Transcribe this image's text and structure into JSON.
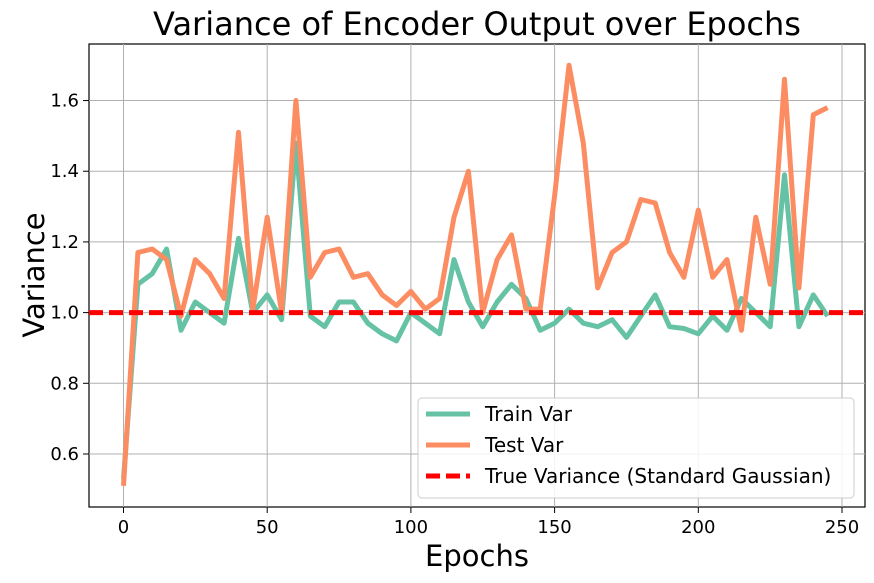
{
  "chart_data": {
    "type": "line",
    "title": "Variance of Encoder Output over Epochs",
    "xlabel": "Epochs",
    "ylabel": "Variance",
    "xlim": [
      -12,
      258
    ],
    "ylim": [
      0.45,
      1.76
    ],
    "xticks": [
      0,
      50,
      100,
      150,
      200,
      250
    ],
    "yticks": [
      0.6,
      0.8,
      1.0,
      1.2,
      1.4,
      1.6
    ],
    "grid": true,
    "legend_position": "lower-right",
    "x": [
      0,
      5,
      10,
      15,
      20,
      25,
      30,
      35,
      40,
      45,
      50,
      55,
      60,
      65,
      70,
      75,
      80,
      85,
      90,
      95,
      100,
      105,
      110,
      115,
      120,
      125,
      130,
      135,
      140,
      145,
      150,
      155,
      160,
      165,
      170,
      175,
      180,
      185,
      190,
      195,
      200,
      205,
      210,
      215,
      220,
      225,
      230,
      235,
      240,
      245
    ],
    "series": [
      {
        "name": "Train Var",
        "color": "#66c2a5",
        "values": [
          0.53,
          1.08,
          1.11,
          1.18,
          0.95,
          1.03,
          1.0,
          0.97,
          1.21,
          1.0,
          1.05,
          0.98,
          1.48,
          0.99,
          0.96,
          1.03,
          1.03,
          0.97,
          0.94,
          0.92,
          1.0,
          0.97,
          0.94,
          1.15,
          1.03,
          0.96,
          1.03,
          1.08,
          1.04,
          0.95,
          0.97,
          1.01,
          0.97,
          0.96,
          0.98,
          0.93,
          0.99,
          1.05,
          0.96,
          0.955,
          0.94,
          0.99,
          0.95,
          1.04,
          1.0,
          0.96,
          1.39,
          0.96,
          1.05,
          0.99
        ]
      },
      {
        "name": "Test Var",
        "color": "#fc8d62",
        "values": [
          0.51,
          1.17,
          1.18,
          1.15,
          0.99,
          1.15,
          1.11,
          1.04,
          1.51,
          1.01,
          1.27,
          1.0,
          1.6,
          1.1,
          1.17,
          1.18,
          1.1,
          1.11,
          1.05,
          1.02,
          1.06,
          1.01,
          1.04,
          1.27,
          1.4,
          1.0,
          1.15,
          1.22,
          1.01,
          1.01,
          1.33,
          1.7,
          1.48,
          1.07,
          1.17,
          1.2,
          1.32,
          1.31,
          1.17,
          1.1,
          1.29,
          1.1,
          1.15,
          0.95,
          1.27,
          1.08,
          1.66,
          1.07,
          1.56,
          1.58
        ]
      }
    ],
    "reference_line": {
      "name": "True Variance (Standard Gaussian)",
      "value": 1.0,
      "color": "#ff0000",
      "style": "dashed"
    }
  }
}
